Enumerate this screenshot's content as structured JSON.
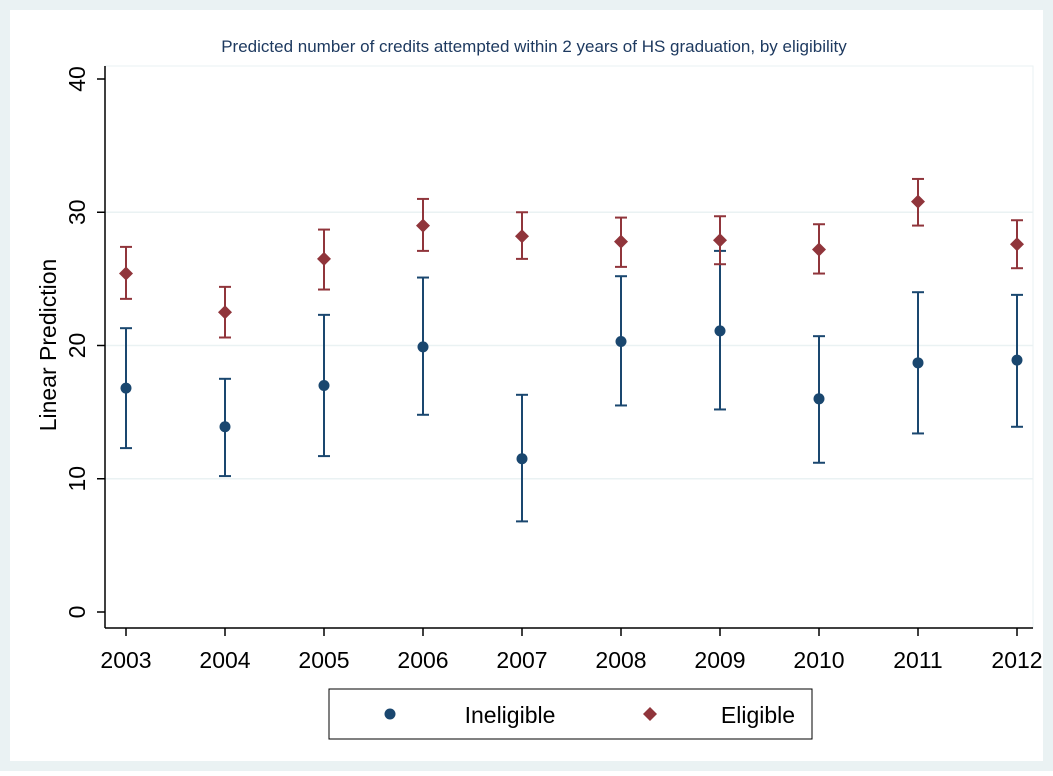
{
  "chart_data": {
    "type": "scatter",
    "title": "Predicted number of credits attempted within 2 years of HS graduation, by eligibility",
    "xlabel": "",
    "ylabel": "Linear Prediction",
    "categories": [
      "2003",
      "2004",
      "2005",
      "2006",
      "2007",
      "2008",
      "2009",
      "2010",
      "2011",
      "2012"
    ],
    "y_ticks": [
      "0",
      "10",
      "20",
      "30",
      "40"
    ],
    "ylim": [
      0,
      40
    ],
    "grid": "horizontal",
    "legend_position": "bottom",
    "error_bars": true,
    "series": [
      {
        "name": "Ineligible",
        "marker": "circle",
        "color": "#1a476f",
        "values": [
          16.8,
          13.9,
          17.0,
          19.9,
          11.5,
          20.3,
          21.1,
          16.0,
          18.7,
          18.9
        ],
        "lower": [
          12.3,
          10.2,
          11.7,
          14.8,
          6.8,
          15.5,
          15.2,
          11.2,
          13.4,
          13.9
        ],
        "upper": [
          21.3,
          17.5,
          22.3,
          25.1,
          16.3,
          25.2,
          27.1,
          20.7,
          24.0,
          23.8
        ]
      },
      {
        "name": "Eligible",
        "marker": "diamond",
        "color": "#90353b",
        "values": [
          25.4,
          22.5,
          26.5,
          29.0,
          28.2,
          27.8,
          27.9,
          27.2,
          30.8,
          27.6
        ],
        "lower": [
          23.5,
          20.6,
          24.2,
          27.1,
          26.5,
          25.9,
          26.1,
          25.4,
          29.0,
          25.8
        ],
        "upper": [
          27.4,
          24.4,
          28.7,
          31.0,
          30.0,
          29.6,
          29.7,
          29.1,
          32.5,
          29.4
        ]
      }
    ]
  }
}
